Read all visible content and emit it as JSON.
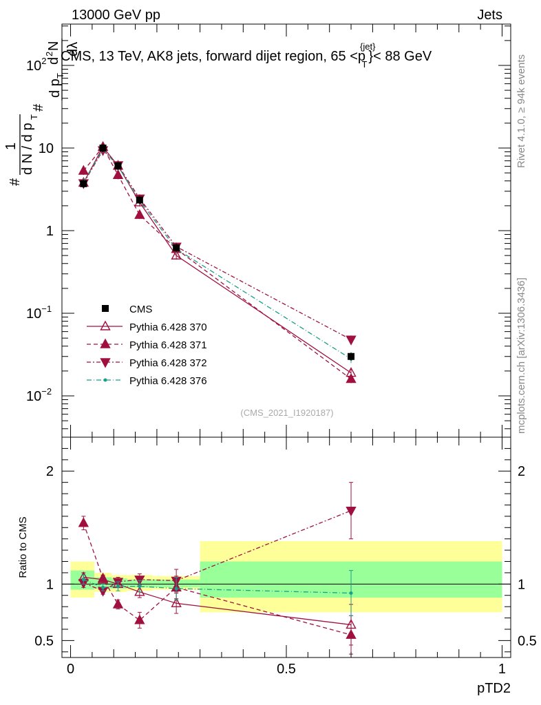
{
  "header": {
    "left": "13000 GeV pp",
    "right": "Jets"
  },
  "side_labels": {
    "rivet": "Rivet 4.1.0, ≥ 94k events",
    "mcplots": "mcplots.cern.ch [arXiv:1306.3436]"
  },
  "watermark": "(CMS_2021_I1920187)",
  "colors": {
    "cms": "#000000",
    "pythia": "#a0103f",
    "p376": "#1b9e8a",
    "band_outer": "#ffff99",
    "band_inner": "#99ff99"
  },
  "chart_data": [
    {
      "type": "scatter",
      "panel": "main",
      "title_parts": [
        "CMS, 13 TeV, AK8 jets, forward dijet region, 65 <p",
        "{jet}",
        "T",
        "}< 88 GeV"
      ],
      "ylabel_parts": [
        "#",
        "1",
        "d N / d p",
        "T",
        "#",
        "d p",
        "T",
        "d",
        "2",
        "N",
        "dλ"
      ],
      "xlim": [
        -0.02,
        1.02
      ],
      "ylim_log10": [
        -2.5,
        2.5
      ],
      "yscale": "log",
      "y_ticks": [
        {
          "value": 0.01,
          "base": "10",
          "exp": "−2"
        },
        {
          "value": 0.1,
          "base": "10",
          "exp": "−1"
        },
        {
          "value": 1,
          "base": "1",
          "exp": ""
        },
        {
          "value": 10,
          "base": "10",
          "exp": ""
        },
        {
          "value": 100,
          "base": "10",
          "exp": "2"
        }
      ],
      "x": [
        0.03,
        0.075,
        0.11,
        0.16,
        0.245,
        0.65
      ],
      "series": [
        {
          "name": "CMS",
          "style": "cms",
          "values": [
            3.7,
            10.0,
            6.1,
            2.35,
            0.62,
            0.03
          ]
        },
        {
          "name": "Pythia 6.428 370",
          "style": "p370",
          "values": [
            3.8,
            10.3,
            6.1,
            2.2,
            0.5,
            0.019
          ]
        },
        {
          "name": "Pythia 6.428 371",
          "style": "p371",
          "values": [
            5.3,
            10.3,
            4.7,
            1.55,
            0.6,
            0.016
          ]
        },
        {
          "name": "Pythia 6.428 372",
          "style": "p372",
          "values": [
            3.75,
            9.4,
            6.2,
            2.45,
            0.64,
            0.048
          ]
        },
        {
          "name": "Pythia 6.428 376",
          "style": "p376",
          "values": [
            3.85,
            9.7,
            6.0,
            2.3,
            0.6,
            0.028
          ]
        }
      ]
    },
    {
      "type": "scatter",
      "panel": "ratio",
      "ylabel": "Ratio to CMS",
      "xlabel": "pTD2",
      "xlim": [
        -0.02,
        1.02
      ],
      "ylim": [
        0.35,
        2.3
      ],
      "y_ticks": [
        {
          "value": 0.5,
          "label": "0.5"
        },
        {
          "value": 1,
          "label": "1"
        },
        {
          "value": 2,
          "label": "2"
        }
      ],
      "x_ticks": [
        {
          "value": 0,
          "label": "0"
        },
        {
          "value": 0.5,
          "label": "0.5"
        },
        {
          "value": 1,
          "label": "1"
        }
      ],
      "bands": [
        {
          "x0": 0.0,
          "x1": 0.055,
          "outer": [
            0.88,
            1.2
          ],
          "inner": [
            0.95,
            1.12
          ]
        },
        {
          "x0": 0.055,
          "x1": 0.095,
          "outer": [
            0.93,
            1.1
          ],
          "inner": [
            0.96,
            1.06
          ]
        },
        {
          "x0": 0.095,
          "x1": 0.13,
          "outer": [
            0.93,
            1.08
          ],
          "inner": [
            0.96,
            1.05
          ]
        },
        {
          "x0": 0.13,
          "x1": 0.19,
          "outer": [
            0.94,
            1.08
          ],
          "inner": [
            0.97,
            1.04
          ]
        },
        {
          "x0": 0.19,
          "x1": 0.3,
          "outer": [
            0.95,
            1.07
          ],
          "inner": [
            0.97,
            1.04
          ]
        },
        {
          "x0": 0.3,
          "x1": 1.0,
          "outer": [
            0.75,
            1.38
          ],
          "inner": [
            0.88,
            1.2
          ]
        }
      ],
      "x": [
        0.03,
        0.075,
        0.11,
        0.16,
        0.245,
        0.65
      ],
      "series": [
        {
          "name": "Pythia 6.428 370",
          "style": "p370",
          "values": [
            1.06,
            1.04,
            1.0,
            0.93,
            0.83,
            0.64
          ],
          "err": [
            0.04,
            0.03,
            0.03,
            0.05,
            0.09,
            0.18
          ]
        },
        {
          "name": "Pythia 6.428 371",
          "style": "p371",
          "values": [
            1.54,
            1.05,
            0.82,
            0.68,
            0.97,
            0.55
          ],
          "err": [
            0.06,
            0.03,
            0.04,
            0.07,
            0.1,
            0.17
          ]
        },
        {
          "name": "Pythia 6.428 372",
          "style": "p372",
          "values": [
            1.01,
            0.94,
            1.02,
            1.04,
            1.03,
            1.65
          ],
          "err": [
            0.04,
            0.03,
            0.04,
            0.05,
            0.1,
            0.25
          ]
        },
        {
          "name": "Pythia 6.428 376",
          "style": "p376",
          "values": [
            1.04,
            0.97,
            0.98,
            0.98,
            0.96,
            0.92
          ],
          "err": [
            0.04,
            0.03,
            0.04,
            0.05,
            0.1,
            0.2
          ]
        }
      ]
    }
  ]
}
